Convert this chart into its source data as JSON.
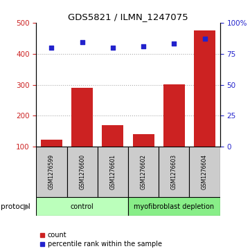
{
  "title": "GDS5821 / ILMN_1247075",
  "samples": [
    "GSM1276599",
    "GSM1276600",
    "GSM1276601",
    "GSM1276602",
    "GSM1276603",
    "GSM1276604"
  ],
  "counts": [
    122,
    290,
    170,
    140,
    302,
    475
  ],
  "percentile_ranks": [
    80,
    84,
    80,
    81,
    83,
    87
  ],
  "bar_baseline": 100,
  "bar_color": "#cc2222",
  "dot_color": "#2222cc",
  "ylim_left": [
    100,
    500
  ],
  "ylim_right": [
    0,
    100
  ],
  "yticks_left": [
    100,
    200,
    300,
    400,
    500
  ],
  "yticks_right": [
    0,
    25,
    50,
    75,
    100
  ],
  "yticklabels_right": [
    "0",
    "25",
    "50",
    "75",
    "100%"
  ],
  "groups": [
    {
      "label": "control",
      "indices": [
        0,
        1,
        2
      ],
      "color": "#bbffbb"
    },
    {
      "label": "myofibroblast depletion",
      "indices": [
        3,
        4,
        5
      ],
      "color": "#88ee88"
    }
  ],
  "protocol_label": "protocol",
  "legend_count_label": "count",
  "legend_pct_label": "percentile rank within the sample",
  "grid_color": "#aaaaaa",
  "sample_box_color": "#cccccc",
  "bar_width": 0.7
}
